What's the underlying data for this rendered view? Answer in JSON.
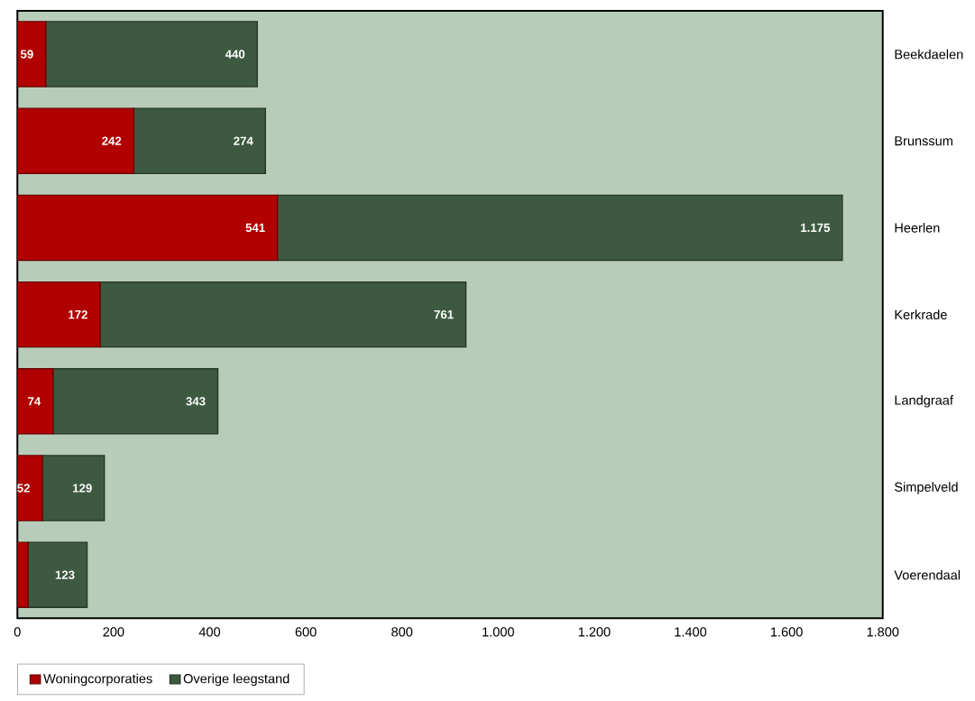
{
  "chart_data": {
    "type": "bar",
    "orientation": "horizontal",
    "stacked": true,
    "categories": [
      "Beekdaelen",
      "Brunssum",
      "Heerlen",
      "Kerkrade",
      "Landgraaf",
      "Simpelveld",
      "Voerendaal"
    ],
    "series": [
      {
        "name": "Woningcorporaties",
        "color": "#b00000",
        "values": [
          59,
          242,
          541,
          172,
          74,
          52,
          22
        ],
        "value_labels": [
          "59",
          "242",
          "541",
          "172",
          "74",
          "52",
          null
        ]
      },
      {
        "name": "Overige leegstand",
        "color": "#3d5a40",
        "values": [
          440,
          274,
          1175,
          761,
          343,
          129,
          123
        ],
        "value_labels": [
          "440",
          "274",
          "1.175",
          "761",
          "343",
          "129",
          "123"
        ]
      }
    ],
    "xlim": [
      0,
      1800
    ],
    "xticks": [
      0,
      200,
      400,
      600,
      800,
      {
        "value": 1000,
        "label": "1.000"
      },
      {
        "value": 1200,
        "label": "1.200"
      },
      {
        "value": 1400,
        "label": "1.400"
      },
      {
        "value": 1600,
        "label": "1.600"
      },
      {
        "value": 1800,
        "label": "1.800"
      }
    ],
    "legend": "bottom left"
  }
}
